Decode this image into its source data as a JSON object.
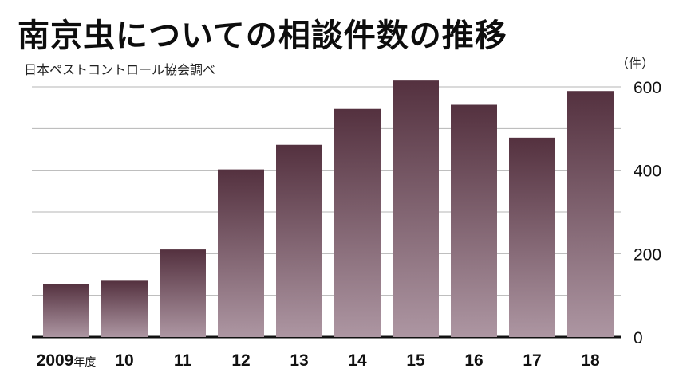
{
  "title": "南京虫についての相談件数の推移",
  "source": "日本ペストコントロール協会調べ",
  "chart_data": {
    "type": "bar",
    "title": "南京虫についての相談件数の推移",
    "unit": "（件）",
    "categories": [
      "2009",
      "10",
      "11",
      "12",
      "13",
      "14",
      "15",
      "16",
      "17",
      "18"
    ],
    "first_category_suffix": "年度",
    "values": [
      128,
      135,
      210,
      402,
      461,
      547,
      615,
      557,
      478,
      590
    ],
    "ylim": [
      0,
      600
    ],
    "yticks": [
      0,
      200,
      400,
      600
    ],
    "grid": true,
    "legend": "none",
    "colors": {
      "bar_top": "#54313f",
      "bar_bottom": "#ad96a2",
      "grid": "#b5b5b5",
      "baseline": "#111111"
    }
  }
}
